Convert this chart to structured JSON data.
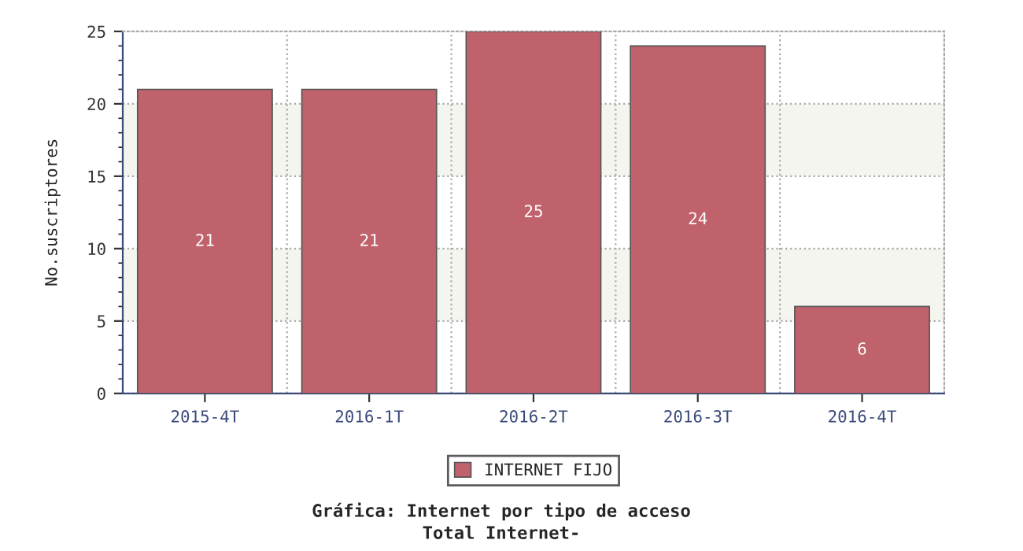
{
  "chart_data": {
    "type": "bar",
    "title": "Gráfica: Internet por tipo de acceso",
    "subtitle": "Total Internet-",
    "ylabel": "No.suscriptores",
    "categories": [
      "2015-4T",
      "2016-1T",
      "2016-2T",
      "2016-3T",
      "2016-4T"
    ],
    "series": [
      {
        "name": "INTERNET FIJO",
        "color": "#c0626b",
        "values": [
          21,
          21,
          25,
          24,
          6
        ]
      }
    ],
    "ylim": [
      0,
      25
    ],
    "yticks": [
      0,
      5,
      10,
      15,
      20,
      25
    ],
    "grid": true,
    "legend": "bottom",
    "data_labels": true,
    "bands": [
      {
        "axis": "y",
        "from": 5,
        "to": 10,
        "color": "#f5f5f0"
      },
      {
        "axis": "y",
        "from": 15,
        "to": 20,
        "color": "#f5f5f0"
      }
    ]
  }
}
